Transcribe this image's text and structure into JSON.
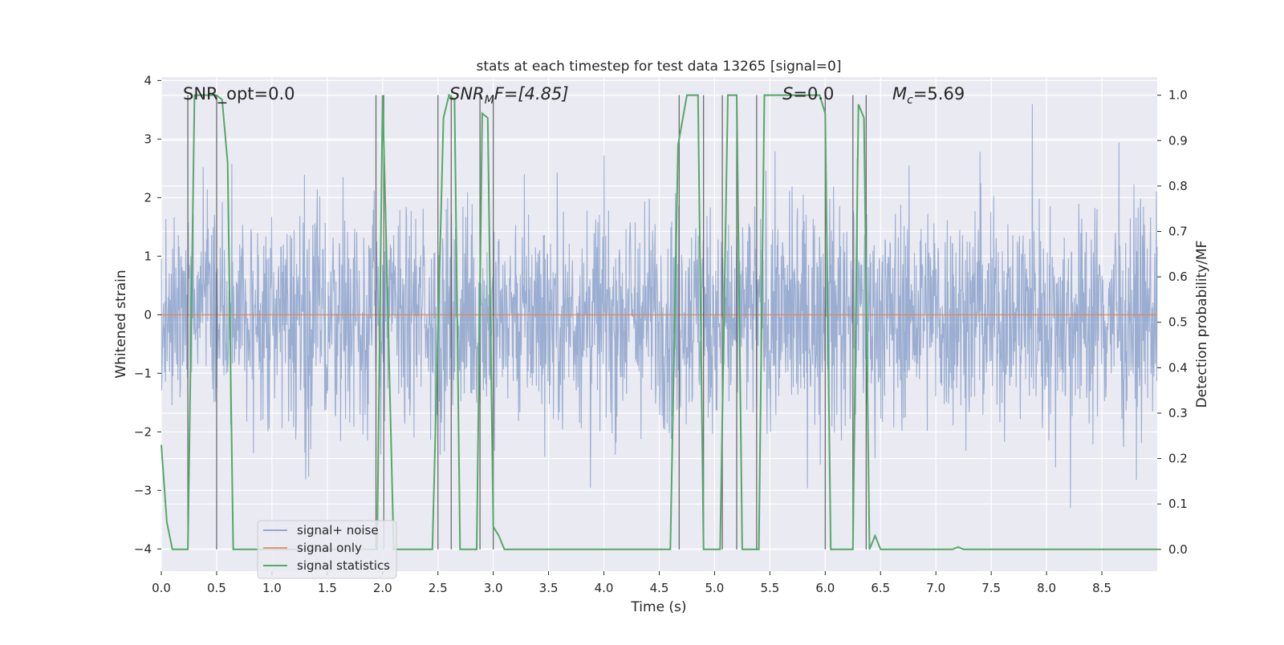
{
  "chart_data": {
    "type": "line",
    "title": "stats at each timestep for test data 13265 [signal=0]",
    "xlabel": "Time (s)",
    "ylabel": "Whitened strain",
    "ylabel_right": "Detection probability/MF",
    "xlim": [
      0,
      9.0
    ],
    "ylim": [
      -4.38,
      4.06
    ],
    "ylim_right": [
      -0.048,
      1.04
    ],
    "x_ticks": [
      "0.0",
      "0.5",
      "1.0",
      "1.5",
      "2.0",
      "2.5",
      "3.0",
      "3.5",
      "4.0",
      "4.5",
      "5.0",
      "5.5",
      "6.0",
      "6.5",
      "7.0",
      "7.5",
      "8.0",
      "8.5"
    ],
    "y_ticks": [
      4,
      3,
      2,
      1,
      0,
      -1,
      -2,
      -3,
      -4
    ],
    "y_tick_labels": [
      "4",
      "3",
      "2",
      "1",
      "0",
      "−1",
      "−2",
      "−3",
      "−4"
    ],
    "y_ticks_right": [
      1.0,
      0.9,
      0.8,
      0.7,
      0.6,
      0.5,
      0.4,
      0.3,
      0.2,
      0.1,
      0.0
    ],
    "y_tick_labels_right": [
      "1.0",
      "0.9",
      "0.8",
      "0.7",
      "0.6",
      "0.5",
      "0.4",
      "0.3",
      "0.2",
      "0.1",
      "0.0"
    ],
    "grid": true,
    "annotations": {
      "snr_opt": "SNR_opt=0.0",
      "snr_mf_sym": "SNR",
      "snr_mf_sub": "M",
      "snr_mf_rest": "F=[4.85]",
      "s_sym": "S",
      "s_rest": "=0.0",
      "mc_sym": "M",
      "mc_sub": "c",
      "mc_rest": "=5.69"
    },
    "legend": {
      "placement": "lower-left",
      "items": [
        {
          "label": "signal+ noise",
          "color": "#4c72b0"
        },
        {
          "label": "signal only",
          "color": "#dd8452"
        },
        {
          "label": "signal statistics",
          "color": "#55a868"
        }
      ]
    },
    "series": [
      {
        "name": "signal+ noise",
        "color": "#4c72b0",
        "description": "whitened strain noise, amplitude roughly ±2 with spikes up to 3.5"
      },
      {
        "name": "signal only",
        "color": "#dd8452",
        "x": [
          0,
          9.0
        ],
        "y": [
          0,
          0
        ]
      },
      {
        "name": "signal statistics",
        "color": "#55a868",
        "x": [
          0.0,
          0.05,
          0.1,
          0.18,
          0.24,
          0.3,
          0.35,
          0.4,
          0.45,
          0.5,
          0.55,
          0.6,
          0.65,
          0.7,
          0.8,
          0.9,
          1.0,
          1.8,
          1.9,
          1.95,
          2.0,
          2.05,
          2.1,
          2.3,
          2.45,
          2.55,
          2.6,
          2.65,
          2.7,
          2.75,
          2.8,
          2.85,
          2.9,
          2.95,
          3.0,
          3.05,
          3.1,
          3.15,
          4.6,
          4.67,
          4.75,
          4.85,
          4.9,
          5.0,
          5.05,
          5.12,
          5.2,
          5.25,
          5.3,
          5.4,
          5.45,
          5.5,
          5.6,
          5.95,
          6.0,
          6.05,
          6.1,
          6.15,
          6.25,
          6.3,
          6.35,
          6.4,
          6.45,
          6.5,
          7.15,
          7.2,
          7.25,
          9.0
        ],
        "y": [
          0.23,
          0.06,
          0.0,
          0.0,
          0.0,
          1.0,
          1.0,
          1.0,
          1.0,
          1.0,
          0.99,
          0.85,
          0.0,
          0.0,
          0.0,
          0.0,
          0.0,
          0.0,
          0.0,
          0.0,
          1.0,
          0.5,
          0.0,
          0.0,
          0.0,
          0.95,
          1.0,
          0.99,
          0.0,
          0.0,
          0.0,
          0.0,
          0.96,
          0.95,
          0.05,
          0.03,
          0.0,
          0.0,
          0.0,
          0.89,
          1.0,
          1.0,
          0.0,
          0.0,
          0.0,
          1.0,
          1.0,
          0.0,
          0.0,
          0.0,
          1.0,
          1.0,
          1.0,
          1.0,
          0.96,
          0.0,
          0.0,
          0.0,
          0.0,
          0.98,
          0.95,
          0.0,
          0.03,
          0.0,
          0.0,
          0.005,
          0.0,
          0.0
        ]
      }
    ],
    "vertical_lines_x": [
      0.24,
      0.5,
      1.94,
      2.01,
      2.5,
      2.62,
      2.88,
      3.0,
      4.68,
      4.9,
      5.07,
      5.2,
      5.38,
      6.0,
      6.25,
      6.37
    ]
  }
}
